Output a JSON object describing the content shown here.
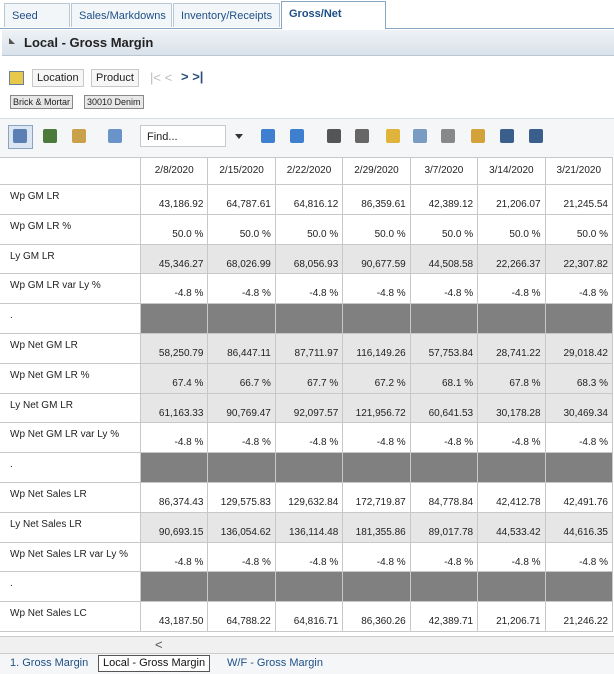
{
  "tabs": [
    "Seed Plan",
    "Sales/Markdowns",
    "Inventory/Receipts",
    "Gross/Net Margin"
  ],
  "panel_title": "Local - Gross Margin",
  "toolbar": {
    "buttons": [
      "Location",
      "Product"
    ],
    "breadcrumbs": [
      "Brick & Mortar",
      "30010 Denim"
    ],
    "find": "Find..."
  },
  "table": {
    "columns": [
      "2/8/2020",
      "2/15/2020",
      "2/22/2020",
      "2/29/2020",
      "3/7/2020",
      "3/14/2020",
      "3/21/2020"
    ],
    "rows": [
      {
        "label": "Wp GM LR",
        "values": [
          "43,186.92",
          "64,787.61",
          "64,816.12",
          "86,359.61",
          "42,389.12",
          "21,206.07",
          "21,245.54"
        ]
      },
      {
        "label": "Wp GM LR %",
        "values": [
          "50.0 %",
          "50.0 %",
          "50.0 %",
          "50.0 %",
          "50.0 %",
          "50.0 %",
          "50.0 %"
        ]
      },
      {
        "label": "Ly GM LR",
        "values": [
          "45,346.27",
          "68,026.99",
          "68,056.93",
          "90,677.59",
          "44,508.58",
          "22,266.37",
          "22,307.82"
        ]
      },
      {
        "label": "Wp GM LR var Ly %",
        "values": [
          "-4.8 %",
          "-4.8 %",
          "-4.8 %",
          "-4.8 %",
          "-4.8 %",
          "-4.8 %",
          "-4.8 %"
        ]
      },
      {
        "label": "."
      },
      {
        "label": "Wp Net GM LR",
        "values": [
          "58,250.79",
          "86,447.11",
          "87,711.97",
          "116,149.26",
          "57,753.84",
          "28,741.22",
          "29,018.42"
        ]
      },
      {
        "label": "Wp Net GM LR %",
        "values": [
          "67.4 %",
          "66.7 %",
          "67.7 %",
          "67.2 %",
          "68.1 %",
          "67.8 %",
          "68.3 %"
        ]
      },
      {
        "label": "Ly Net GM LR",
        "values": [
          "61,163.33",
          "90,769.47",
          "92,097.57",
          "121,956.72",
          "60,641.53",
          "30,178.28",
          "30,469.34"
        ]
      },
      {
        "label": "Wp Net GM LR var Ly %",
        "values": [
          "-4.8 %",
          "-4.8 %",
          "-4.8 %",
          "-4.8 %",
          "-4.8 %",
          "-4.8 %",
          "-4.8 %"
        ]
      },
      {
        "label": "."
      },
      {
        "label": "Wp Net Sales LR",
        "values": [
          "86,374.43",
          "129,575.83",
          "129,632.84",
          "172,719.87",
          "84,778.84",
          "42,412.78",
          "42,491.76"
        ]
      },
      {
        "label": "Ly Net Sales LR",
        "values": [
          "90,693.15",
          "136,054.62",
          "136,114.48",
          "181,355.86",
          "89,017.78",
          "44,533.42",
          "44,616.35"
        ]
      },
      {
        "label": "Wp Net Sales LR var Ly %",
        "values": [
          "-4.8 %",
          "-4.8 %",
          "-4.8 %",
          "-4.8 %",
          "-4.8 %",
          "-4.8 %",
          "-4.8 %"
        ]
      },
      {
        "label": "."
      },
      {
        "label": "Wp Net Sales LC",
        "values": [
          "43,187.50",
          "64,788.22",
          "64,816.71",
          "86,360.26",
          "42,389.71",
          "21,206.71",
          "21,246.22"
        ]
      }
    ]
  },
  "bottom_tabs": [
    "1. Gross Margin",
    "Local - Gross Margin",
    "W/F - Gross Margin"
  ]
}
